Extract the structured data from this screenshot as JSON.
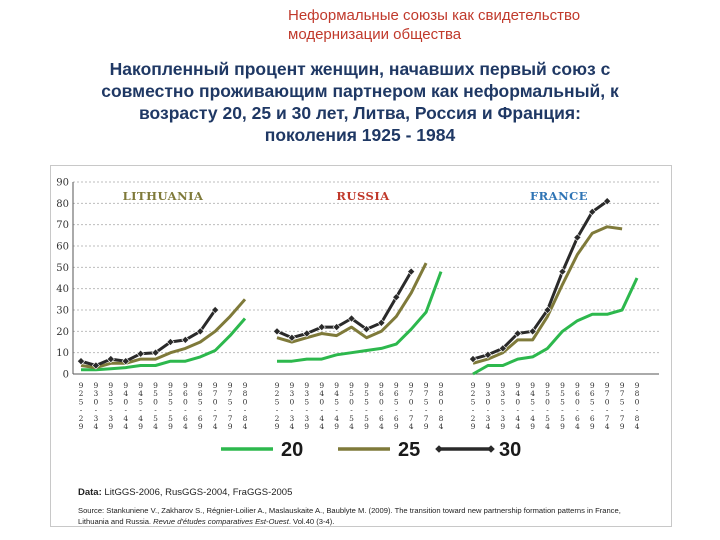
{
  "header": {
    "line1": "Неформальные союзы как свидетельство",
    "line2": "модернизации общества"
  },
  "title": {
    "line1": "Накопленный процент женщин, начавших первый союз с",
    "line2": "совместно проживающим партнером как неформальный, к",
    "line3": "возрасту 20, 25 и 30 лет, Литва, Россия и Франция:",
    "line4": "поколения 1925 - 1984"
  },
  "chart_data": {
    "type": "line",
    "ylim": [
      0,
      90
    ],
    "yticks": [
      "0",
      "10",
      "20",
      "30",
      "40",
      "50",
      "60",
      "70",
      "80",
      "90"
    ],
    "grid": true,
    "x_labels": [
      "1925-29",
      "1930-34",
      "1935-39",
      "1940-44",
      "1945-49",
      "1950-54",
      "1955-59",
      "1960-64",
      "1965-69",
      "1970-74",
      "1975-79",
      "1980-84"
    ],
    "x_label_display": [
      "9\n2\n5\n-\n2\n9",
      "9\n3\n0\n-\n3\n4",
      "9\n3\n5\n-\n3\n9",
      "9\n4\n0\n-\n4\n4",
      "9\n4\n5\n-\n4\n9",
      "9\n5\n0\n-\n5\n4",
      "9\n5\n5\n-\n5\n9",
      "9\n6\n0\n-\n6\n4",
      "9\n6\n5\n-\n6\n9",
      "9\n7\n0\n-\n7\n4",
      "9\n7\n5\n-\n7\n9",
      "9\n8\n0\n-\n8\n4"
    ],
    "colors": {
      "20": "#2db84d",
      "25": "#7f7a3a",
      "30": "#2a2a2a"
    },
    "legend": {
      "placement": "bottom",
      "labels": [
        "20",
        "25",
        "30"
      ]
    },
    "panels": [
      {
        "name": "LITHUANIA",
        "label_color": "#7f7a3a",
        "series": [
          {
            "name": "20",
            "values": [
              2,
              2,
              2.5,
              3,
              4,
              4,
              6,
              6,
              8,
              11,
              18,
              26
            ]
          },
          {
            "name": "25",
            "values": [
              4,
              3,
              5,
              5,
              7,
              7,
              10,
              12,
              15,
              20,
              27,
              35
            ]
          },
          {
            "name": "30",
            "values": [
              6,
              4,
              7,
              6,
              9.5,
              10,
              15,
              16,
              20,
              30,
              null,
              null
            ]
          }
        ]
      },
      {
        "name": "RUSSIA",
        "label_color": "#c0392b",
        "series": [
          {
            "name": "20",
            "values": [
              6,
              6,
              7,
              7,
              9,
              10,
              11,
              12,
              14,
              21,
              29,
              48
            ]
          },
          {
            "name": "25",
            "values": [
              17,
              15,
              17,
              19,
              18,
              22,
              17,
              20,
              27,
              38,
              52,
              null
            ]
          },
          {
            "name": "30",
            "values": [
              20,
              17,
              19,
              22,
              22,
              26,
              21,
              24,
              36,
              48,
              null,
              null
            ]
          }
        ]
      },
      {
        "name": "FRANCE",
        "label_color": "#2e74b5",
        "series": [
          {
            "name": "20",
            "values": [
              0,
              4,
              4,
              7,
              8,
              12,
              20,
              25,
              28,
              28,
              30,
              45
            ]
          },
          {
            "name": "25",
            "values": [
              5,
              7,
              10,
              16,
              16,
              27,
              42,
              56,
              66,
              69,
              68,
              null
            ]
          },
          {
            "name": "30",
            "values": [
              7,
              9,
              12,
              19,
              20,
              30,
              48,
              64,
              76,
              81,
              null,
              null
            ]
          }
        ]
      }
    ]
  },
  "notes": {
    "data_label": "Data:",
    "data_text": " LitGGS-2006, RusGGS-2004, FraGGS-2005",
    "source_text": "Source: Stankuniene V., Zakharov S., Régnier-Loilier A., Maslauskaite A., Baublyte M. (2009). The transition toward new partnership formation patterns in France, Lithuania and Russia. ",
    "source_journal": "Revue d'études comparatives Est-Ouest",
    "source_end": ". Vol.40 (3-4)."
  }
}
